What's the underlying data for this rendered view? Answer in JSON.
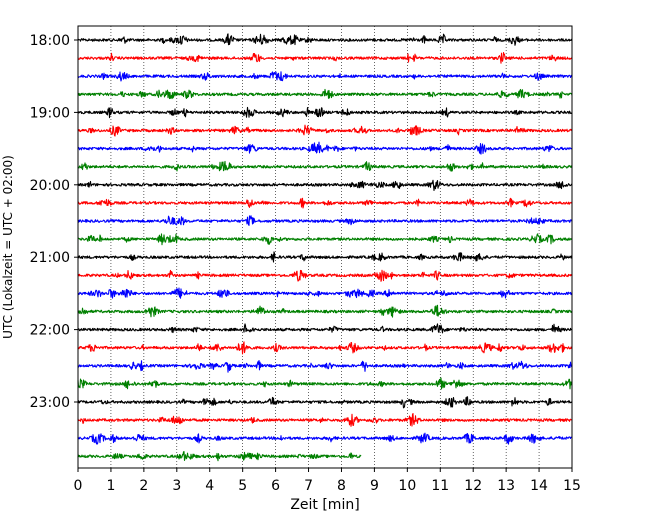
{
  "chart_data": {
    "type": "helicorder",
    "xlabel": "Zeit  [min]",
    "ylabel": "UTC (Lokalzeit = UTC + 02:00)",
    "xlim": [
      0,
      15
    ],
    "x_ticks": [
      "0",
      "1",
      "2",
      "3",
      "4",
      "5",
      "6",
      "7",
      "8",
      "9",
      "10",
      "11",
      "12",
      "13",
      "14",
      "15"
    ],
    "y_tick_labels": [
      "18:00",
      "19:00",
      "20:00",
      "21:00",
      "22:00",
      "23:00"
    ],
    "line_start": "18:00",
    "line_interval_min": 15,
    "grid": "vertical dotted",
    "color_cycle": [
      "#000000",
      "#ff0000",
      "#0000ff",
      "#008000"
    ],
    "traces": [
      {
        "start": "18:00",
        "color": "#000000",
        "duration_min": 15
      },
      {
        "start": "18:15",
        "color": "#ff0000",
        "duration_min": 15
      },
      {
        "start": "18:30",
        "color": "#0000ff",
        "duration_min": 15
      },
      {
        "start": "18:45",
        "color": "#008000",
        "duration_min": 15
      },
      {
        "start": "19:00",
        "color": "#000000",
        "duration_min": 15
      },
      {
        "start": "19:15",
        "color": "#ff0000",
        "duration_min": 15
      },
      {
        "start": "19:30",
        "color": "#0000ff",
        "duration_min": 15
      },
      {
        "start": "19:45",
        "color": "#008000",
        "duration_min": 15
      },
      {
        "start": "20:00",
        "color": "#000000",
        "duration_min": 15
      },
      {
        "start": "20:15",
        "color": "#ff0000",
        "duration_min": 15
      },
      {
        "start": "20:30",
        "color": "#0000ff",
        "duration_min": 15
      },
      {
        "start": "20:45",
        "color": "#008000",
        "duration_min": 15
      },
      {
        "start": "21:00",
        "color": "#000000",
        "duration_min": 15
      },
      {
        "start": "21:15",
        "color": "#ff0000",
        "duration_min": 15
      },
      {
        "start": "21:30",
        "color": "#0000ff",
        "duration_min": 15
      },
      {
        "start": "21:45",
        "color": "#008000",
        "duration_min": 15
      },
      {
        "start": "22:00",
        "color": "#000000",
        "duration_min": 15
      },
      {
        "start": "22:15",
        "color": "#ff0000",
        "duration_min": 15
      },
      {
        "start": "22:30",
        "color": "#0000ff",
        "duration_min": 15
      },
      {
        "start": "22:45",
        "color": "#008000",
        "duration_min": 15
      },
      {
        "start": "23:00",
        "color": "#000000",
        "duration_min": 15
      },
      {
        "start": "23:15",
        "color": "#ff0000",
        "duration_min": 15
      },
      {
        "start": "23:30",
        "color": "#0000ff",
        "duration_min": 15
      },
      {
        "start": "23:45",
        "color": "#008000",
        "duration_min": 8.6
      }
    ]
  }
}
